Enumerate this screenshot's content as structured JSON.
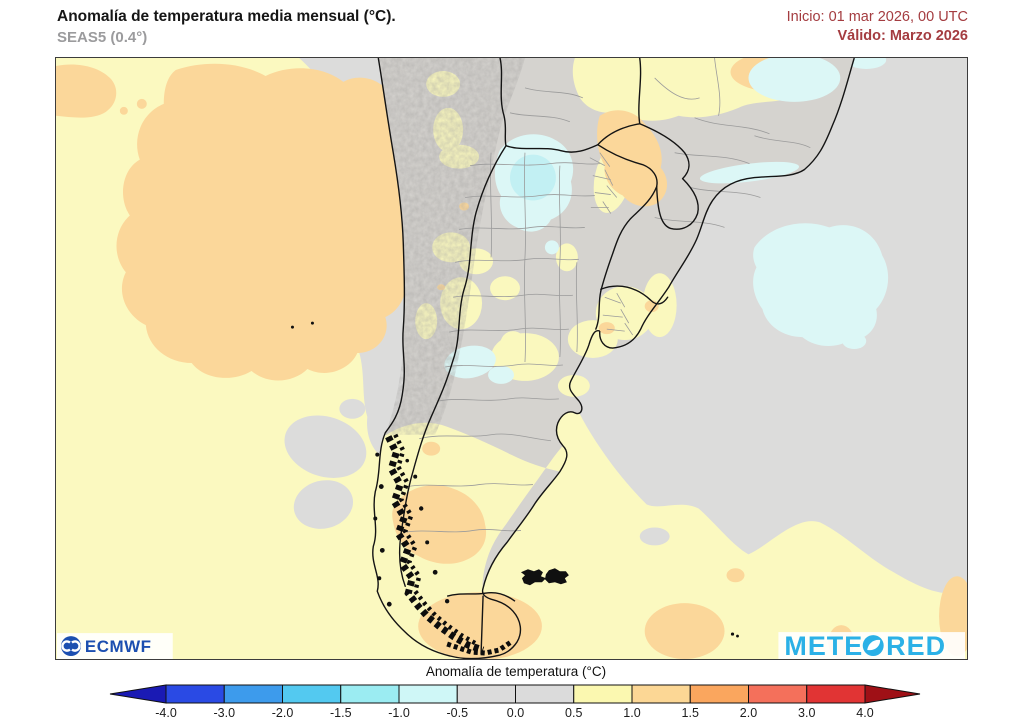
{
  "header": {
    "title": "Anomalía de temperatura media mensual (°C).",
    "subtitle": "SEAS5 (0.4°)",
    "run_info": "Inicio: 01 mar 2026, 00 UTC",
    "valid_info": "Válido: Marzo 2026"
  },
  "legend": {
    "title": "Anomalía de temperatura (°C)",
    "ticks": [
      "-4.0",
      "-3.0",
      "-2.0",
      "-1.5",
      "-1.0",
      "-0.5",
      "0.0",
      "0.5",
      "1.0",
      "1.5",
      "2.0",
      "3.0",
      "4.0"
    ],
    "segment_colors": [
      "#2A4AE4",
      "#3D9BEC",
      "#53C9F0",
      "#9BECF2",
      "#CFF7F7",
      "#DBDBDB",
      "#DBDBDB",
      "#FBF8B0",
      "#FCD795",
      "#FAA65E",
      "#F4705B",
      "#E13434"
    ],
    "arrow_left_color": "#1A1AB4",
    "arrow_right_color": "#9F1016"
  },
  "branding": {
    "ecmwf_label": "ECMWF",
    "meteored_prefix": "METE",
    "meteored_suffix": "RED"
  },
  "map_colors": {
    "ocean_warm": "#FBF9C0",
    "ocean_neutral": "#DCDCDB",
    "land_neutral": "#D5D3CF",
    "warm_1": "#FAF8BE",
    "warm_2": "#FBD79A",
    "cool_1": "#DCF7F6",
    "cool_2": "#C2F0F3",
    "border_country": "#141414",
    "border_admin": "#9B9B9B",
    "frame": "#3C3C3C",
    "accent_title": "#A43C40",
    "ecmwf_blue": "#1C4FB0",
    "meteored_blue": "#2BB1E6"
  }
}
